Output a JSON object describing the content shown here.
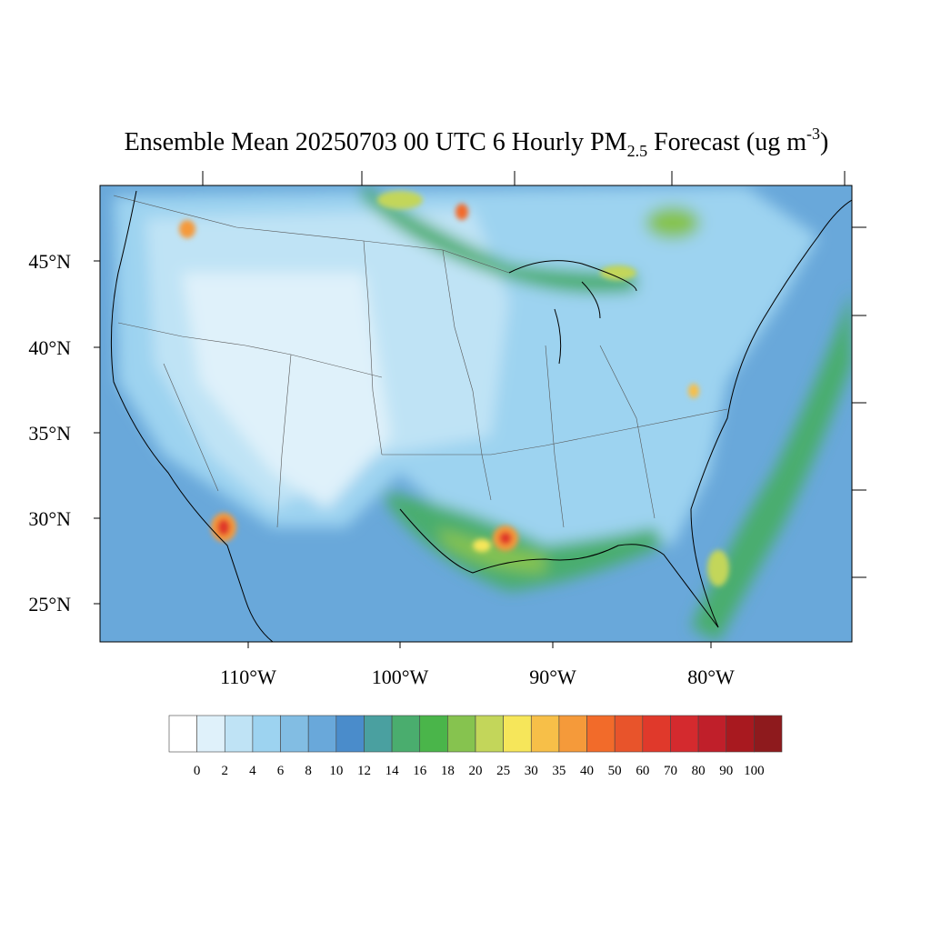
{
  "title": {
    "main": "Ensemble Mean 20250703 00 UTC 6 Hourly PM",
    "subscript": "2.5",
    "middle": " Forecast (ug m",
    "superscript": "-3",
    "end": ")"
  },
  "lat_labels": [
    "45°N",
    "40°N",
    "35°N",
    "30°N",
    "25°N"
  ],
  "lon_labels": [
    "110°W",
    "100°W",
    "90°W",
    "80°W"
  ],
  "colorbar": {
    "colors": [
      "#ffffff",
      "#dff1fa",
      "#bfe3f5",
      "#9dd3f0",
      "#82bde3",
      "#69a8da",
      "#4a8ccb",
      "#4aa0a0",
      "#4aad6e",
      "#4ab54a",
      "#86c34f",
      "#c3d65a",
      "#f6e65a",
      "#f7bf48",
      "#f59a3a",
      "#f26b2a",
      "#e8542b",
      "#e0392b",
      "#d42a2e",
      "#c01f2a",
      "#a8191f",
      "#8e1a1d"
    ],
    "labels": [
      "0",
      "2",
      "4",
      "6",
      "8",
      "10",
      "12",
      "14",
      "16",
      "18",
      "20",
      "25",
      "30",
      "35",
      "40",
      "50",
      "60",
      "70",
      "80",
      "90",
      "100"
    ]
  }
}
